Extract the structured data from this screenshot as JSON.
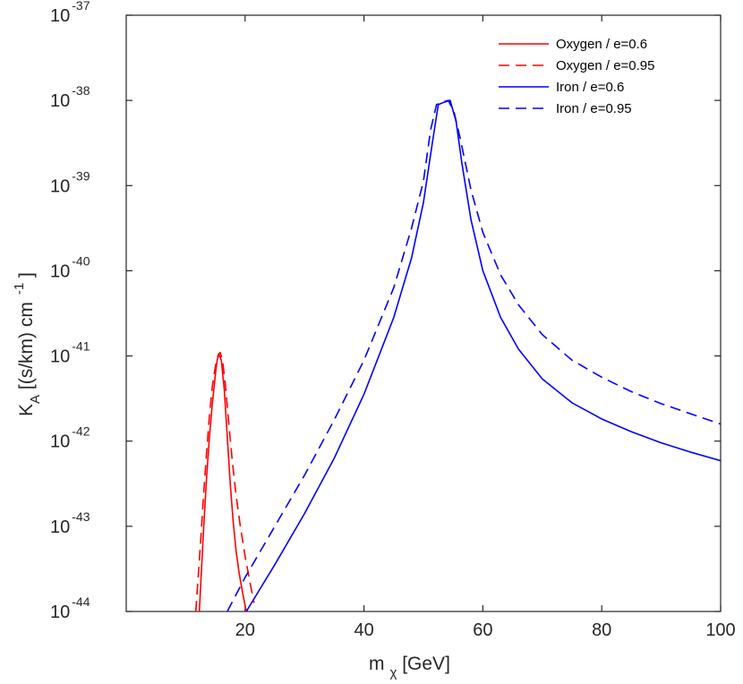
{
  "chart_data": {
    "type": "line",
    "xscale": "linear",
    "yscale": "log",
    "xlim": [
      0,
      100
    ],
    "ylim": [
      1e-44,
      1e-37
    ],
    "xticks": [
      20,
      40,
      60,
      80,
      100
    ],
    "xtick_labels": [
      "20",
      "40",
      "60",
      "80",
      "100"
    ],
    "yticks": [
      -44,
      -43,
      -42,
      -41,
      -40,
      -39,
      -38,
      -37
    ],
    "ytick_base": "10",
    "ytick_exponents": [
      "-44",
      "-43",
      "-42",
      "-41",
      "-40",
      "-39",
      "-38",
      "-37"
    ],
    "xlabel": {
      "main": "m",
      "sub": "χ",
      "rest": " [GeV]"
    },
    "ylabel": {
      "main": "K",
      "sub": "A",
      "rest": " [(s/km) cm",
      "sup": "-1",
      "end": " ]"
    },
    "legend_position": "top-right",
    "series": [
      {
        "name": "Oxygen / e=0.6",
        "color": "#ff0000",
        "dash": "solid",
        "x": [
          12.3,
          13,
          13.5,
          14,
          14.5,
          15,
          15.3,
          15.6,
          16,
          16.5,
          17,
          17.5,
          18,
          18.5,
          19,
          19.5,
          20.2
        ],
        "log10y": [
          -44.0,
          -43.05,
          -42.45,
          -41.95,
          -41.55,
          -41.22,
          -41.05,
          -40.98,
          -41.05,
          -41.4,
          -41.95,
          -42.5,
          -42.95,
          -43.3,
          -43.55,
          -43.75,
          -44.0
        ]
      },
      {
        "name": "Oxygen / e=0.95",
        "color": "#ff0000",
        "dash": "dashed",
        "x": [
          11.7,
          12.5,
          13,
          13.5,
          14,
          14.5,
          15,
          15.5,
          15.8,
          16.2,
          16.7,
          17.2,
          17.8,
          18.5,
          19.2,
          20,
          20.8,
          21.5
        ],
        "log10y": [
          -44.0,
          -43.2,
          -42.65,
          -42.15,
          -41.7,
          -41.35,
          -41.12,
          -40.98,
          -40.96,
          -41.05,
          -41.35,
          -41.75,
          -42.2,
          -42.65,
          -43.0,
          -43.35,
          -43.65,
          -43.9
        ]
      },
      {
        "name": "Iron / e=0.6",
        "color": "#0000ff",
        "dash": "solid",
        "x": [
          20.2,
          25,
          30,
          35,
          40,
          45,
          48,
          50,
          51.5,
          52.5,
          53.5,
          54.5,
          55.5,
          56.5,
          58,
          60,
          63,
          66,
          70,
          75,
          80,
          85,
          90,
          95,
          100
        ],
        "log10y": [
          -44.0,
          -43.45,
          -42.85,
          -42.2,
          -41.45,
          -40.55,
          -39.85,
          -39.2,
          -38.5,
          -38.05,
          -38.02,
          -38.0,
          -38.25,
          -38.75,
          -39.4,
          -40.0,
          -40.55,
          -40.92,
          -41.27,
          -41.55,
          -41.74,
          -41.89,
          -42.02,
          -42.13,
          -42.23
        ]
      },
      {
        "name": "Iron / e=0.95",
        "color": "#0000ff",
        "dash": "dashed",
        "x": [
          17.0,
          20,
          25,
          30,
          35,
          40,
          45,
          48,
          50,
          51.2,
          52.2,
          53.2,
          54.2,
          55.2,
          56.2,
          58,
          60,
          63,
          66,
          70,
          75,
          80,
          85,
          90,
          95,
          100
        ],
        "log10y": [
          -44.0,
          -43.6,
          -43.0,
          -42.4,
          -41.75,
          -41.05,
          -40.2,
          -39.5,
          -38.95,
          -38.35,
          -38.05,
          -38.02,
          -38.0,
          -38.15,
          -38.45,
          -39.05,
          -39.55,
          -40.05,
          -40.4,
          -40.75,
          -41.05,
          -41.25,
          -41.42,
          -41.56,
          -41.68,
          -41.8
        ]
      }
    ]
  }
}
